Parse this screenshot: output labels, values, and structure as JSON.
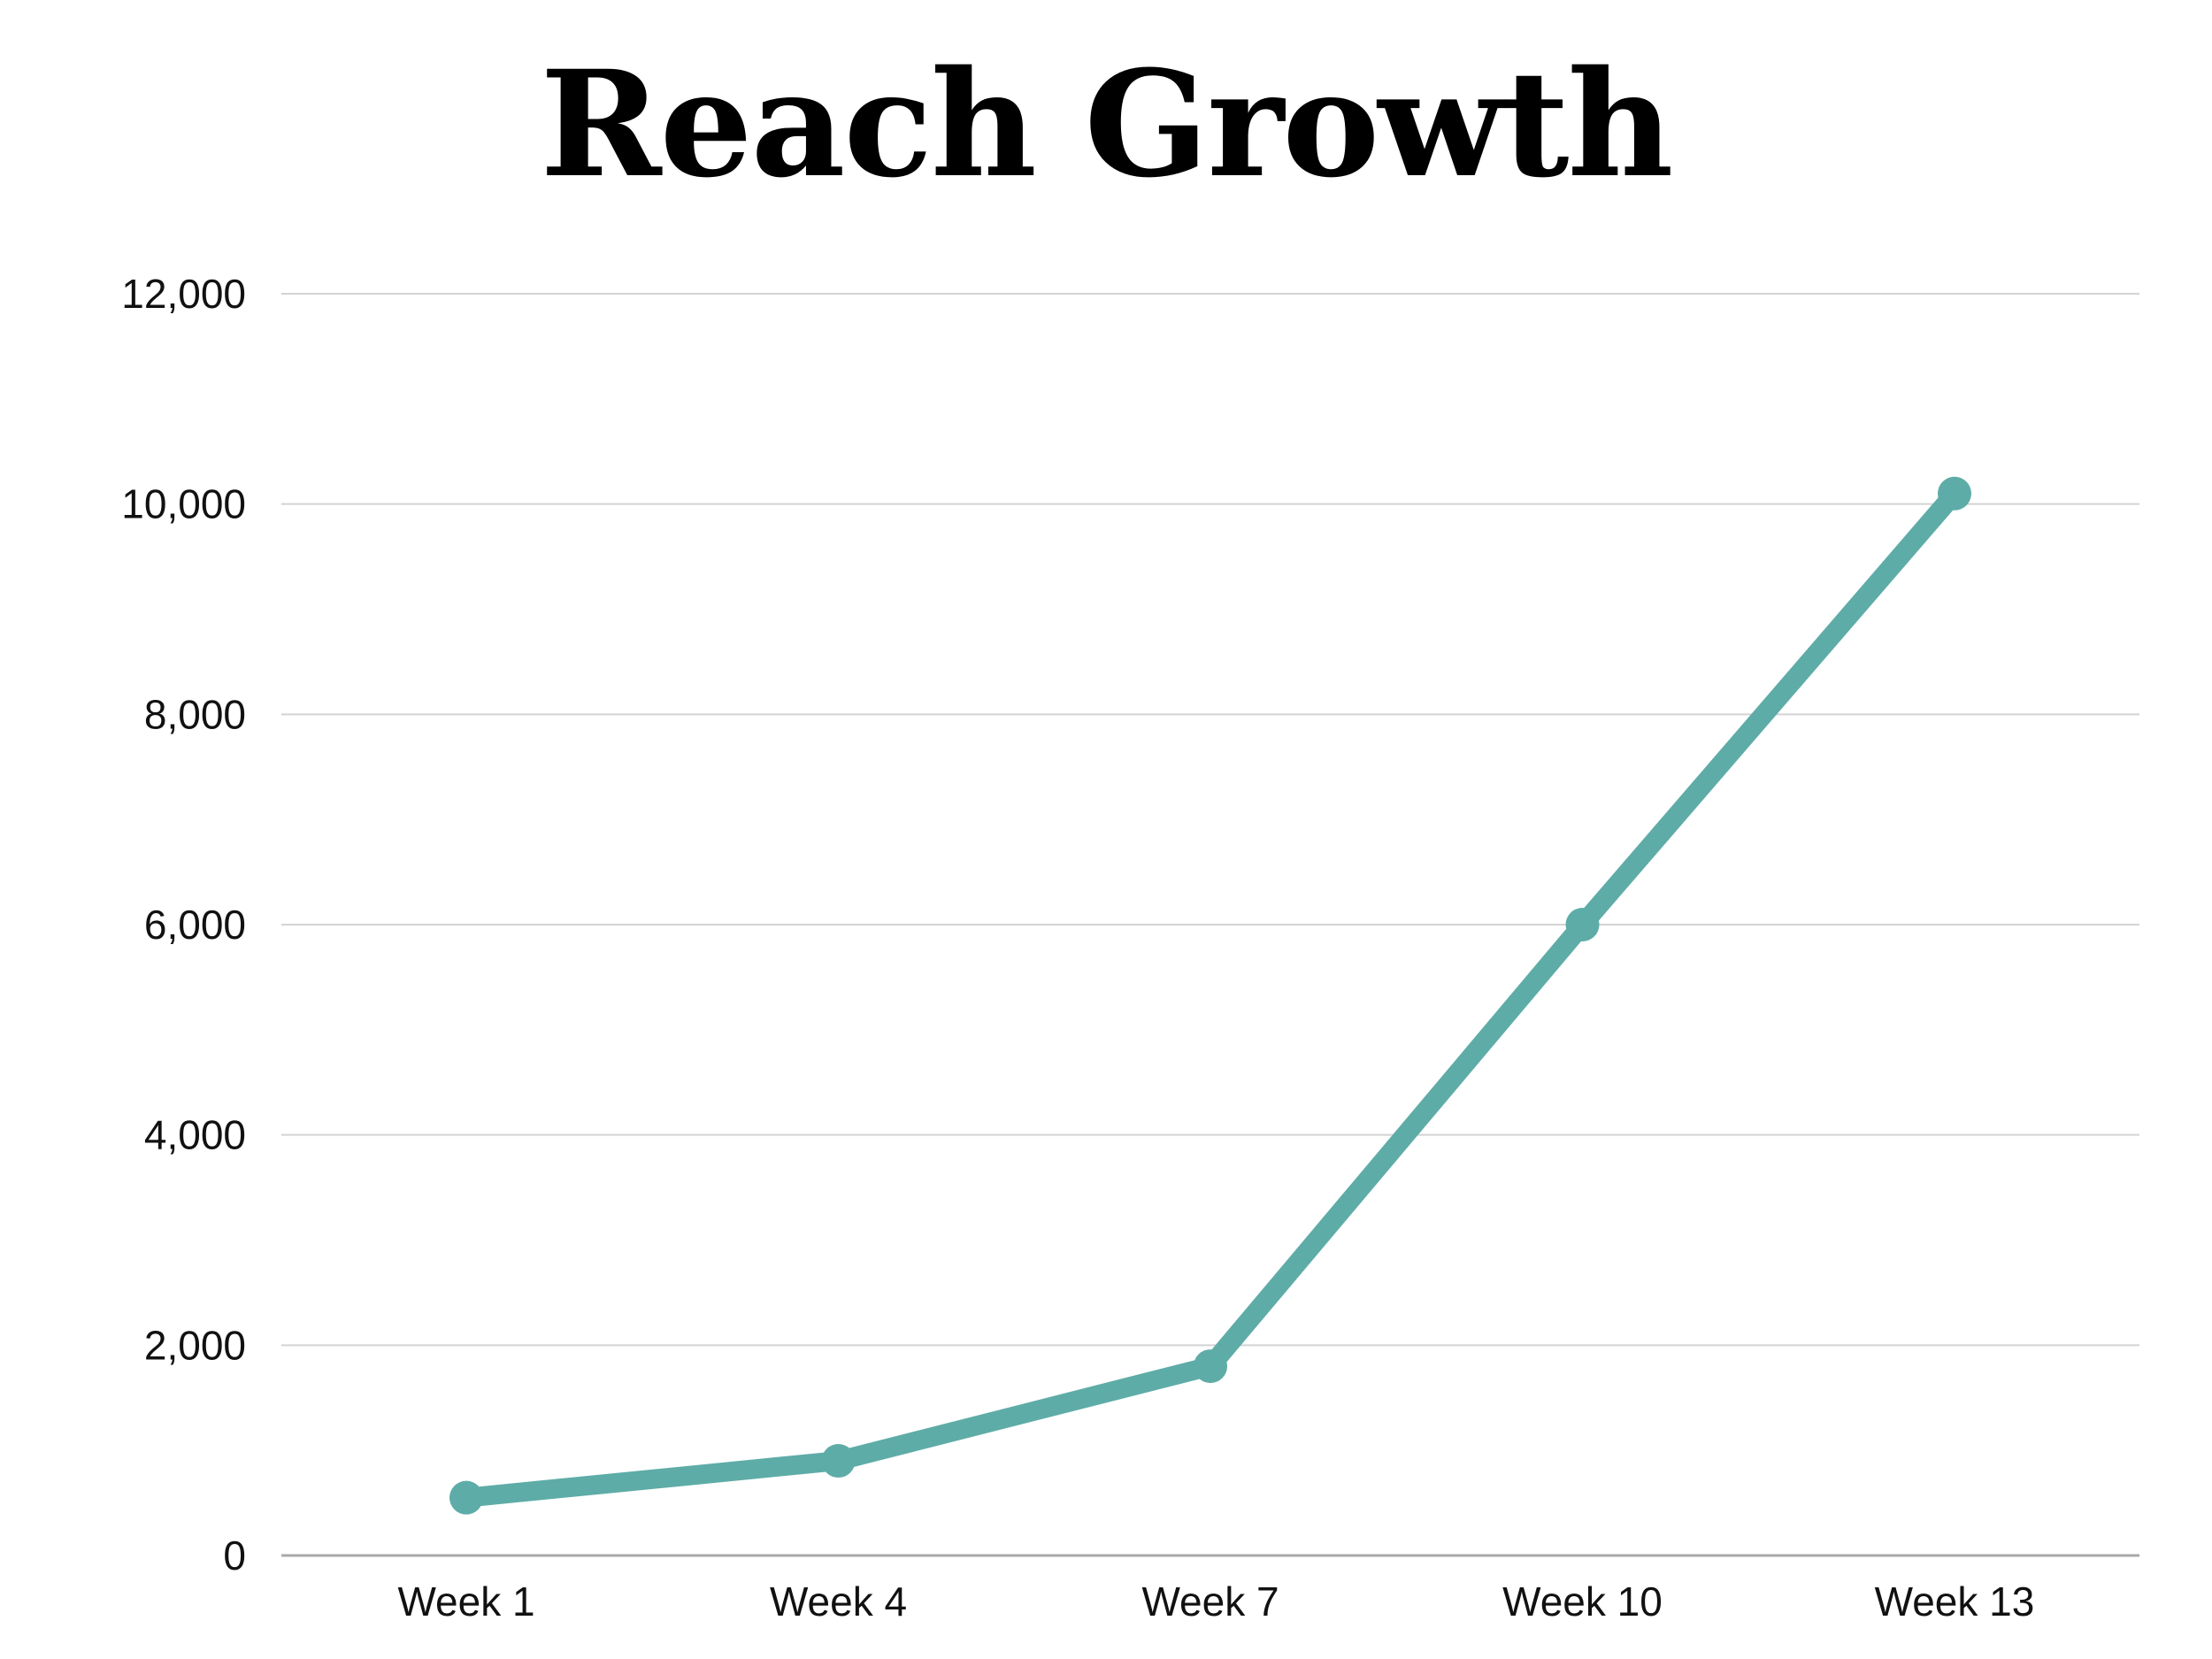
{
  "chart_data": {
    "type": "line",
    "title": "Reach Growth",
    "categories": [
      "Week 1",
      "Week 4",
      "Week 7",
      "Week 10",
      "Week 13"
    ],
    "series": [
      {
        "values": [
          550,
          900,
          1800,
          6000,
          10100
        ],
        "color": "#5eaca7"
      }
    ],
    "y_ticks": [
      "0",
      "2,000",
      "4,000",
      "6,000",
      "8,000",
      "10,000",
      "12,000"
    ],
    "ylim": [
      0,
      12000
    ],
    "xlabel": "",
    "ylabel": "",
    "grid": true,
    "legend": "none",
    "colors": {
      "line": "#5eaca7",
      "grid": "#d3d3d3",
      "axis": "#a9a9a9",
      "text": "#111111"
    }
  }
}
